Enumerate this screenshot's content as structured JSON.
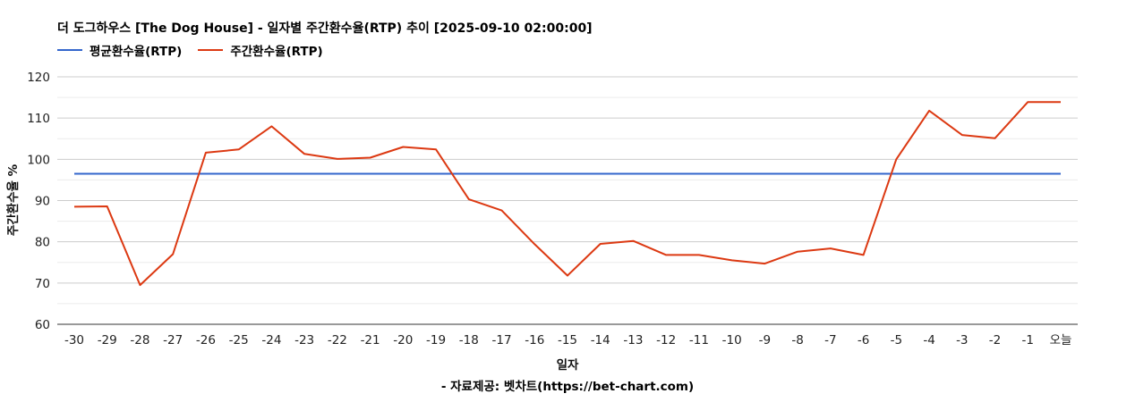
{
  "chart_data": {
    "type": "line",
    "title": "더 도그하우스 [The Dog House] - 일자별 주간환수율(RTP) 추이 [2025-09-10 02:00:00]",
    "xlabel": "일자",
    "ylabel": "주간환수율 %",
    "source": "- 자료제공: 벳차트(https://bet-chart.com)",
    "ylim": [
      60,
      120
    ],
    "yticks": [
      60,
      70,
      80,
      90,
      100,
      110,
      120
    ],
    "grid": true,
    "legend_position": "top-left",
    "categories": [
      "-30",
      "-29",
      "-28",
      "-27",
      "-26",
      "-25",
      "-24",
      "-23",
      "-22",
      "-21",
      "-20",
      "-19",
      "-18",
      "-17",
      "-16",
      "-15",
      "-14",
      "-13",
      "-12",
      "-11",
      "-10",
      "-9",
      "-8",
      "-7",
      "-6",
      "-5",
      "-4",
      "-3",
      "-2",
      "-1",
      "오늘"
    ],
    "series": [
      {
        "name": "평균환수율(RTP)",
        "color": "#3366cc",
        "values": [
          96.5,
          96.5,
          96.5,
          96.5,
          96.5,
          96.5,
          96.5,
          96.5,
          96.5,
          96.5,
          96.5,
          96.5,
          96.5,
          96.5,
          96.5,
          96.5,
          96.5,
          96.5,
          96.5,
          96.5,
          96.5,
          96.5,
          96.5,
          96.5,
          96.5,
          96.5,
          96.5,
          96.5,
          96.5,
          96.5,
          96.5
        ]
      },
      {
        "name": "주간환수율(RTP)",
        "color": "#dc3912",
        "values": [
          88.5,
          88.6,
          69.5,
          77.0,
          101.6,
          102.4,
          108.0,
          101.3,
          100.1,
          100.4,
          103.0,
          102.4,
          90.3,
          87.6,
          79.4,
          71.8,
          79.5,
          80.2,
          76.8,
          76.8,
          75.5,
          74.7,
          77.6,
          78.4,
          76.8,
          100.0,
          111.8,
          105.9,
          105.1,
          113.9,
          113.9
        ]
      }
    ]
  }
}
